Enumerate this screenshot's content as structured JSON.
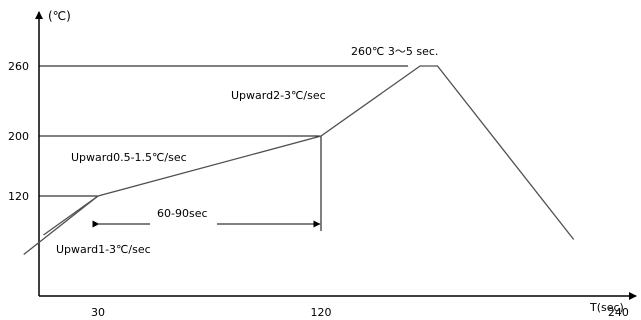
{
  "chart_data": {
    "type": "line",
    "title": "",
    "xlabel": "T(sec)",
    "ylabel": "(℃)",
    "x_ticks": [
      30,
      120,
      240
    ],
    "y_ticks": [
      120,
      200,
      260
    ],
    "xlim": [
      0,
      260
    ],
    "ylim": [
      0,
      300
    ],
    "grid": false,
    "series": [
      {
        "name": "",
        "points": [
          {
            "x": 0,
            "y": 42
          },
          {
            "x": 30,
            "y": 120
          },
          {
            "x": 120,
            "y": 200
          },
          {
            "x": 160,
            "y": 260
          },
          {
            "x": 167,
            "y": 260
          },
          {
            "x": 222,
            "y": 62
          }
        ]
      },
      {
        "name": "",
        "points": [
          {
            "x": 8,
            "y": 68
          },
          {
            "x": 30,
            "y": 120
          }
        ]
      }
    ],
    "annotations": [
      {
        "id": "peak",
        "text": "260℃ 3～5 sec."
      },
      {
        "id": "upward2",
        "text": "Upward2-3℃/sec"
      },
      {
        "id": "upward05",
        "text": "Upward0.5-1.5℃/sec"
      },
      {
        "id": "span",
        "text": "60-90sec"
      },
      {
        "id": "upward1",
        "text": "Upward1-3℃/sec"
      }
    ]
  }
}
